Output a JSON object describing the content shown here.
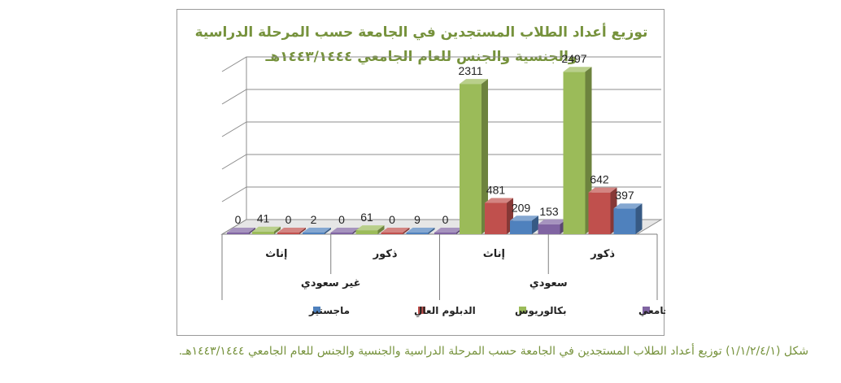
{
  "chart_data": {
    "type": "bar",
    "title": [
      "توزيع أعداد الطلاب المستجدين في الجامعة حسب المرحلة الدراسية",
      "والجنسية والجنس للعام الجامعي ١٤٤٣/١٤٤٤هـ"
    ],
    "groups": [
      "غير سعودي",
      "سعودي"
    ],
    "categories": [
      {
        "label": "إناث",
        "group": "غير سعودي"
      },
      {
        "label": "ذكور",
        "group": "غير سعودي"
      },
      {
        "label": "إناث",
        "group": "سعودي"
      },
      {
        "label": "ذكور",
        "group": "سعودي"
      }
    ],
    "series": [
      {
        "name": "الدبلوم المتوسط والجامعي",
        "color": "#8064a2",
        "values": [
          0,
          0,
          0,
          153
        ]
      },
      {
        "name": "بكالوريوس",
        "color": "#9bbb59",
        "values": [
          41,
          61,
          2311,
          2497
        ]
      },
      {
        "name": "الدبلوم العالِ",
        "color": "#c0504d",
        "values": [
          0,
          0,
          481,
          642
        ]
      },
      {
        "name": "ماجستير",
        "color": "#4f81bd",
        "values": [
          2,
          9,
          209,
          397
        ]
      }
    ],
    "y_ticks": [
      "2500",
      "2000",
      "1500",
      "1000",
      "500",
      "0"
    ],
    "ylim": [
      0,
      2500
    ],
    "y_axis_side": "right",
    "grid": true,
    "legend_position": "bottom"
  },
  "caption": "شكل (١/١/٢/٤/١) توزيع أعداد الطلاب المستجدين في الجامعة حسب المرحلة الدراسية والجنسية والجنس للعام الجامعي ١٤٤٣/١٤٤٤هـ."
}
